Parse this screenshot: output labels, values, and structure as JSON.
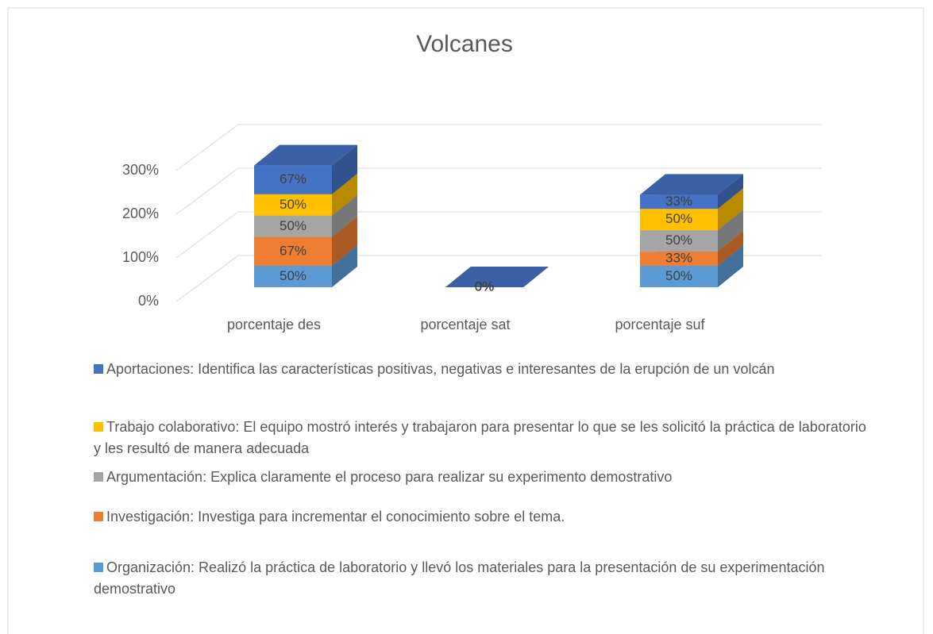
{
  "chart_data": {
    "type": "bar3d_stacked",
    "title": "Volcanes",
    "categories": [
      "porcentaje des",
      "porcentaje sat",
      "porcentaje suf"
    ],
    "series": [
      {
        "name": "Organización: Realizó la práctica de laboratorio y llevó los materiales para la presentación de su experimentación demostrativo",
        "color": "#5b9bd5",
        "values": [
          50,
          0,
          50
        ],
        "value_labels": [
          "50%",
          "0%",
          "50%"
        ]
      },
      {
        "name": "Investigación: Investiga para incrementar el conocimiento sobre el tema.",
        "color": "#ed7d31",
        "values": [
          67,
          0,
          33
        ],
        "value_labels": [
          "67%",
          "0%",
          "33%"
        ]
      },
      {
        "name": "Argumentación: Explica claramente el proceso para realizar su experimento demostrativo",
        "color": "#a5a5a5",
        "values": [
          50,
          0,
          50
        ],
        "value_labels": [
          "50%",
          "0%",
          "50%"
        ]
      },
      {
        "name": "Trabajo colaborativo: El equipo mostró interés y trabajaron para presentar lo que se les solicitó la práctica de laboratorio y les resultó de manera adecuada",
        "color": "#ffc000",
        "values": [
          50,
          0,
          50
        ],
        "value_labels": [
          "50%",
          "0%",
          "50%"
        ]
      },
      {
        "name": "Aportaciones: Identifica las características positivas, negativas e interesantes de la erupción de un volcán",
        "color": "#4472c4",
        "values": [
          67,
          0,
          33
        ],
        "value_labels": [
          "67%",
          "0%",
          "33%"
        ]
      }
    ],
    "ylim": [
      0,
      300
    ],
    "yticks": [
      {
        "value": 0,
        "label": "0%"
      },
      {
        "value": 100,
        "label": "100%"
      },
      {
        "value": 200,
        "label": "200%"
      },
      {
        "value": 300,
        "label": "300%"
      }
    ],
    "grid": true,
    "legend": "bottom"
  }
}
